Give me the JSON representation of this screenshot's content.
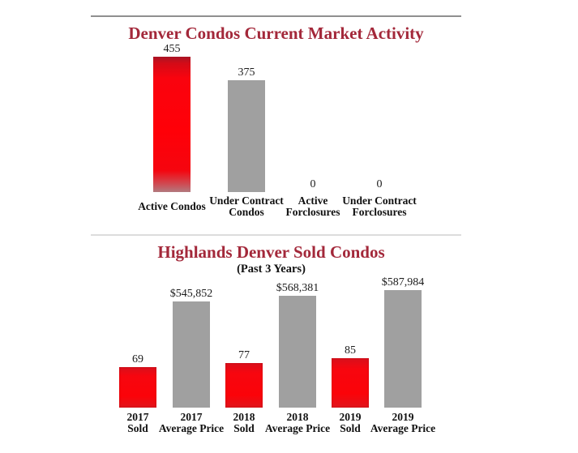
{
  "page": {
    "background": "#ffffff",
    "title_color": "#a3283a",
    "text_color": "#111111",
    "bar_red": "#f7060f",
    "bar_gray": "#a0a0a0"
  },
  "dividers": {
    "top_color": "#8f8f8f",
    "middle_color": "#dcdcdc"
  },
  "chart_data": [
    {
      "type": "bar",
      "title": "Denver Condos Current Market Activity",
      "categories": [
        "Active Condos",
        "Under Contract Condos",
        "Active Forclosures",
        "Under Contract Forclosures"
      ],
      "category_lines": [
        [
          "Active Condos"
        ],
        [
          "Under Contract",
          "Condos"
        ],
        [
          "Active",
          "Forclosures"
        ],
        [
          "Under Contract",
          "Forclosures"
        ]
      ],
      "values": [
        455,
        375,
        0,
        0
      ],
      "value_labels": [
        "455",
        "375",
        "0",
        "0"
      ],
      "bar_colors": [
        "#f7060f",
        "#a0a0a0",
        "#f7060f",
        "#a0a0a0"
      ],
      "xlabel": "",
      "ylabel": "",
      "ylim": [
        0,
        500
      ],
      "grid": false,
      "legend": null
    },
    {
      "type": "bar",
      "title": "Highlands Denver Sold Condos",
      "subtitle": "(Past 3 Years)",
      "categories": [
        "2017 Sold",
        "2017 Average Price",
        "2018 Sold",
        "2018 Average Price",
        "2019 Sold",
        "2019 Average Price"
      ],
      "category_lines": [
        [
          "2017",
          "Sold"
        ],
        [
          "2017",
          "Average Price"
        ],
        [
          "2018",
          "Sold"
        ],
        [
          "2018",
          "Average Price"
        ],
        [
          "2019",
          "Sold"
        ],
        [
          "2019",
          "Average Price"
        ]
      ],
      "values": [
        69,
        545852,
        77,
        568381,
        85,
        587984
      ],
      "value_labels": [
        "69",
        "$545,852",
        "77",
        "$568,381",
        "85",
        "$587,984"
      ],
      "bar_colors": [
        "#f7060f",
        "#a0a0a0",
        "#f7060f",
        "#a0a0a0",
        "#f7060f",
        "#a0a0a0"
      ],
      "series": [
        {
          "name": "Sold",
          "color": "#f7060f",
          "values": [
            69,
            77,
            85
          ]
        },
        {
          "name": "Average Price",
          "color": "#a0a0a0",
          "values": [
            545852,
            568381,
            587984
          ]
        }
      ],
      "xlabel": "",
      "ylabel": "",
      "grid": false,
      "legend": null
    }
  ]
}
